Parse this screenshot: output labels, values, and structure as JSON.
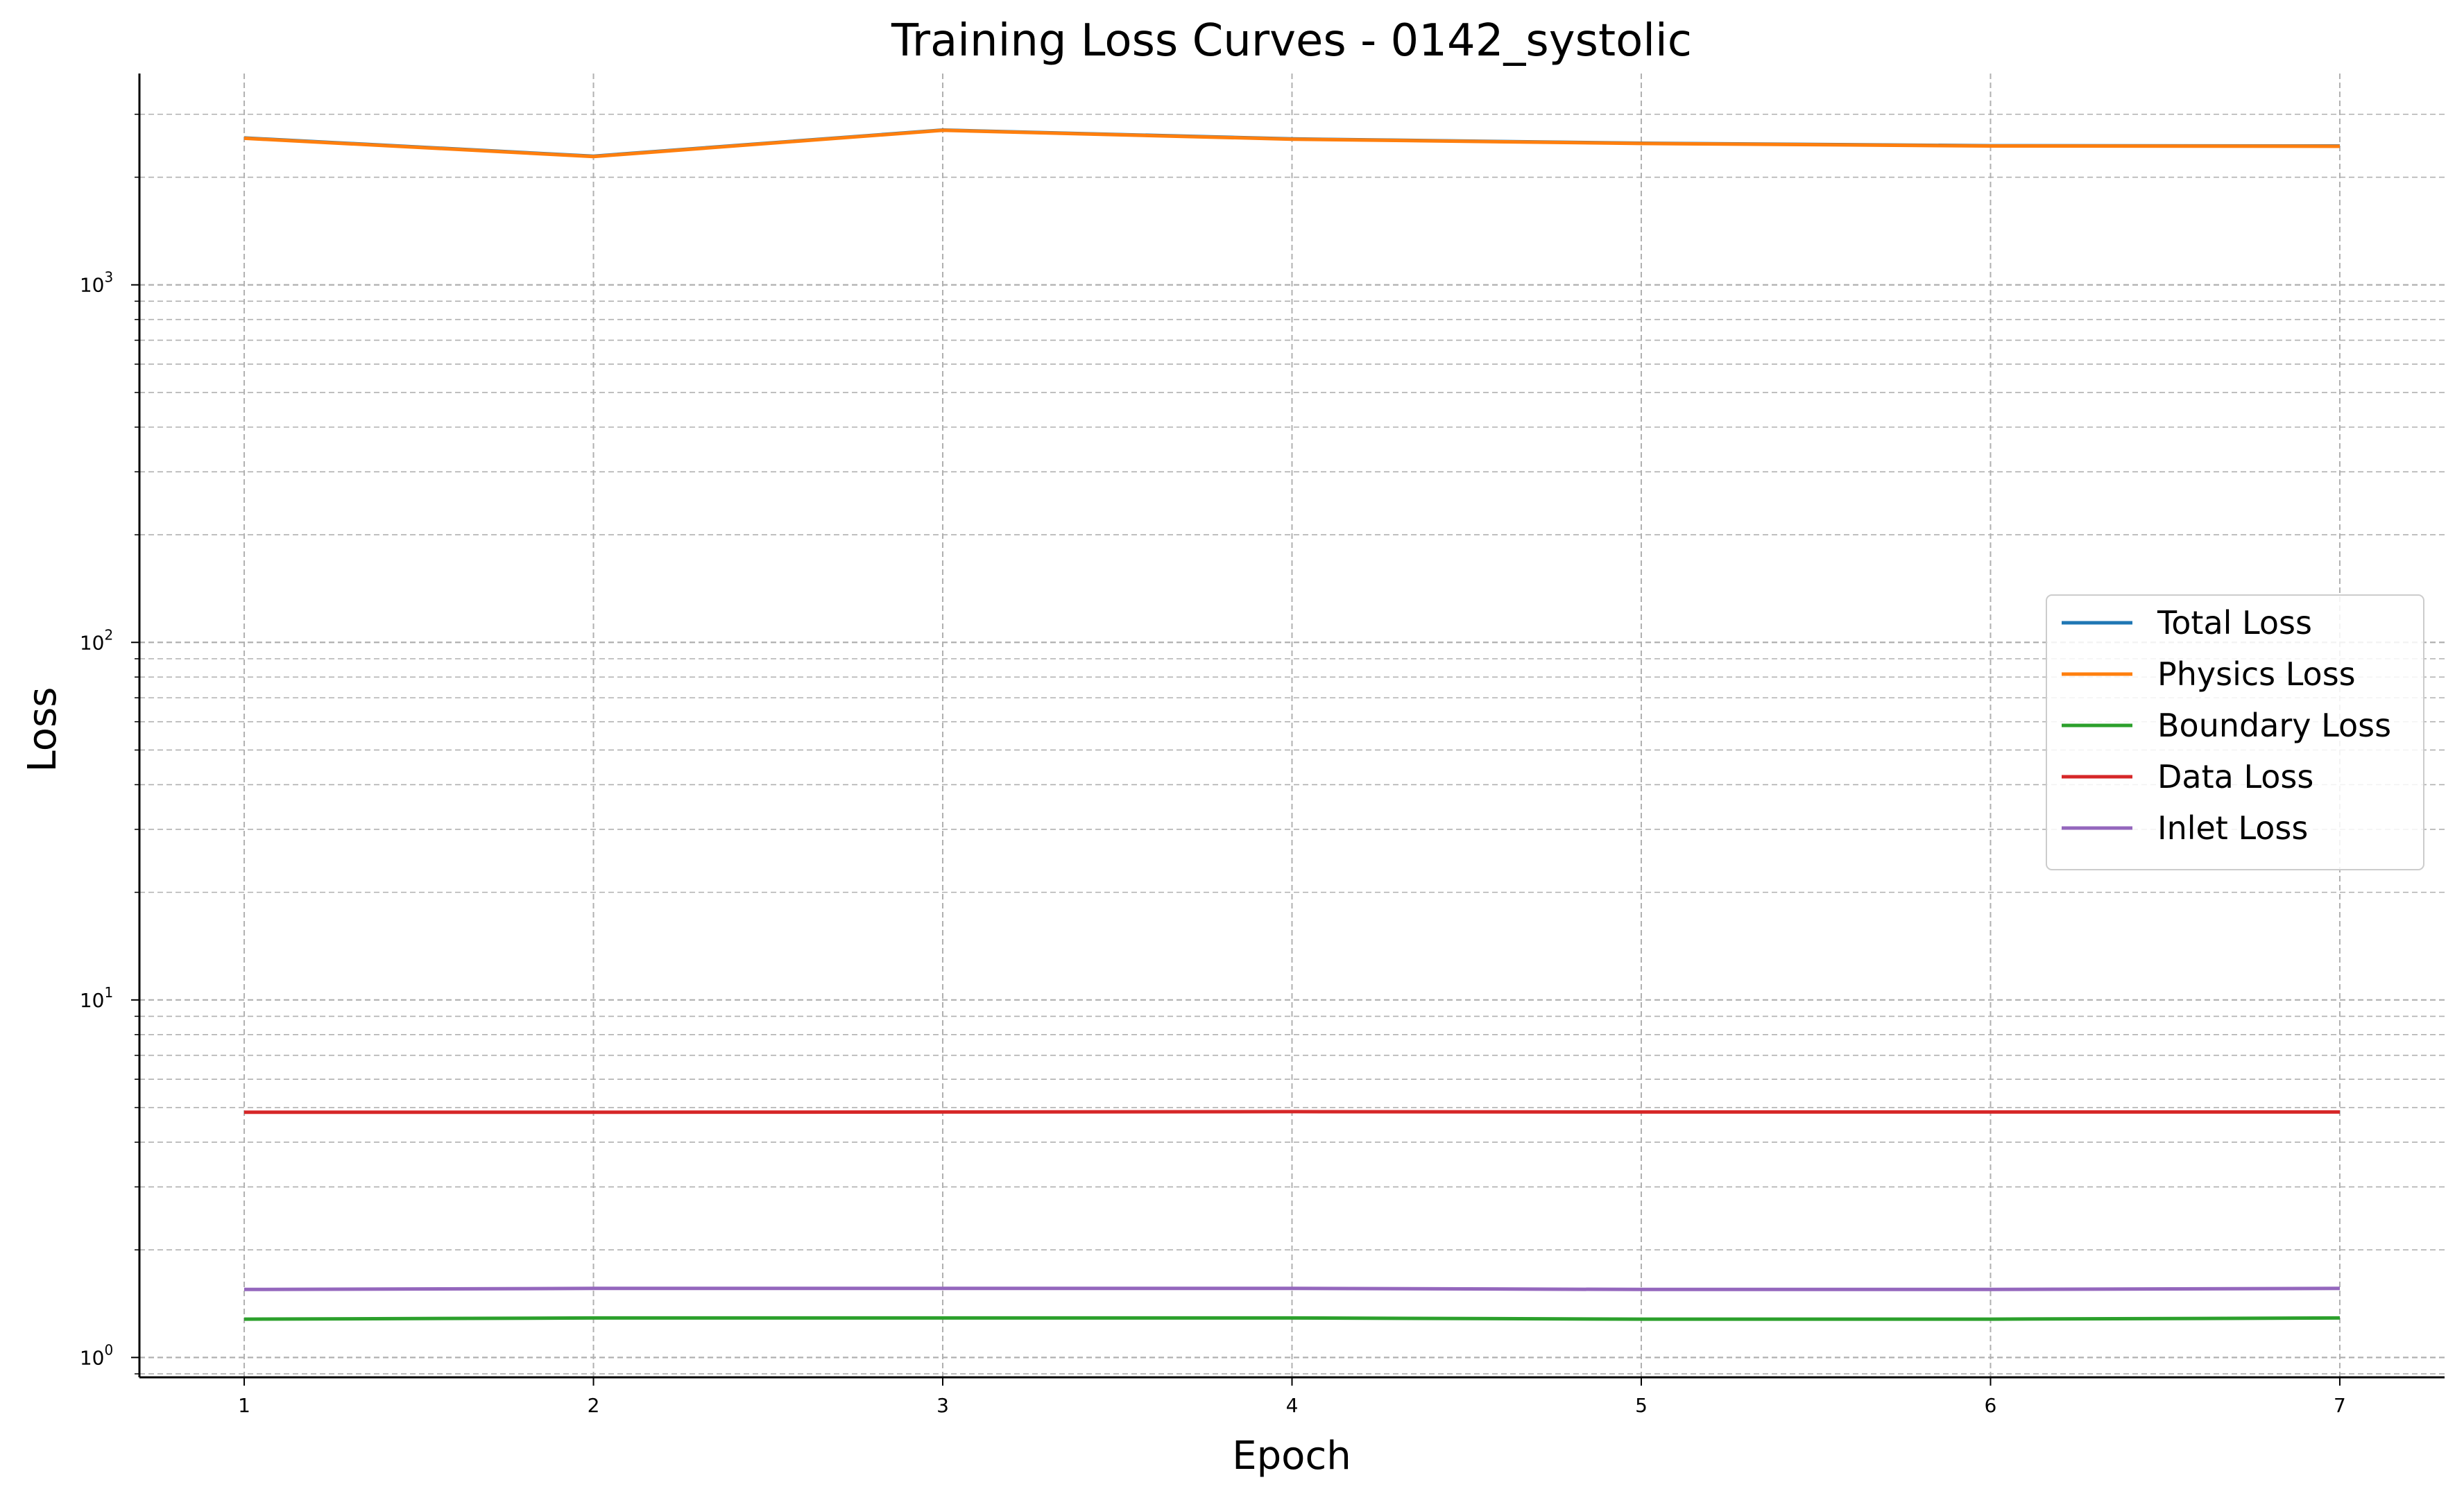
{
  "chart_data": {
    "type": "line",
    "title": "Training Loss Curves - 0142_systolic",
    "xlabel": "Epoch",
    "ylabel": "Loss",
    "y_scale": "log",
    "xlim": [
      0.7,
      7.3
    ],
    "ylim": [
      0.88,
      3900
    ],
    "x_ticks": [
      "1",
      "2",
      "3",
      "4",
      "5",
      "6",
      "7"
    ],
    "y_ticks": [
      {
        "value": 1,
        "base": "10",
        "exp": "0"
      },
      {
        "value": 10,
        "base": "10",
        "exp": "1"
      },
      {
        "value": 100,
        "base": "10",
        "exp": "2"
      },
      {
        "value": 1000,
        "base": "10",
        "exp": "3"
      }
    ],
    "grid": true,
    "legend_position": "center-right",
    "x": [
      1,
      2,
      3,
      4,
      5,
      6,
      7
    ],
    "series": [
      {
        "name": "Total Loss",
        "color": "#1f77b4",
        "values": [
          2575,
          2290,
          2710,
          2560,
          2490,
          2450,
          2445
        ]
      },
      {
        "name": "Physics Loss",
        "color": "#ff7f0e",
        "values": [
          2570,
          2285,
          2705,
          2555,
          2485,
          2445,
          2440
        ]
      },
      {
        "name": "Boundary Loss",
        "color": "#2ca02c",
        "values": [
          1.28,
          1.29,
          1.29,
          1.29,
          1.28,
          1.28,
          1.29
        ]
      },
      {
        "name": "Data Loss",
        "color": "#d62728",
        "values": [
          4.85,
          4.85,
          4.86,
          4.87,
          4.86,
          4.86,
          4.86
        ]
      },
      {
        "name": "Inlet Loss",
        "color": "#9467bd",
        "values": [
          1.55,
          1.56,
          1.56,
          1.56,
          1.55,
          1.55,
          1.56
        ]
      }
    ]
  }
}
